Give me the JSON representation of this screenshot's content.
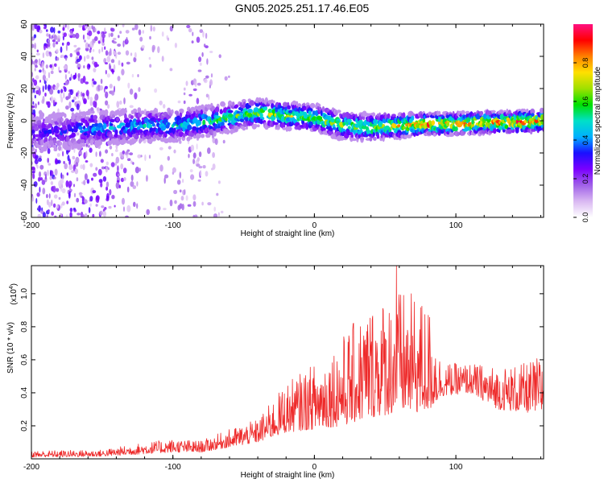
{
  "title": "GN05.2025.251.17.46.E05",
  "chart_data": [
    {
      "type": "heatmap",
      "name": "spectrogram",
      "xlabel": "Height of straight line (km)",
      "ylabel": "Frequency (Hz)",
      "xlim": [
        -200,
        162
      ],
      "ylim": [
        -60,
        60
      ],
      "xticks": [
        "-200",
        "-100",
        "0",
        "100"
      ],
      "yticks": [
        "-60",
        "-40",
        "-20",
        "0",
        "20",
        "40",
        "60"
      ],
      "colorbar": {
        "label": "Normalized spectral amplitude",
        "range": [
          0.0,
          1.0
        ],
        "ticks": [
          "0.0",
          "0.2",
          "0.4",
          "0.6",
          "0.8"
        ],
        "stops": [
          "#ffffff",
          "#d9b8f2",
          "#a060e8",
          "#7a00ff",
          "#1a10ff",
          "#00b0ff",
          "#00e0c8",
          "#00e000",
          "#a0e000",
          "#ffe000",
          "#ff8000",
          "#ff0000",
          "#ff1080"
        ]
      },
      "ridge_profile": [
        {
          "x": -200,
          "f": -8,
          "amp": 0.3,
          "noise": 0.85
        },
        {
          "x": -180,
          "f": -7,
          "amp": 0.35,
          "noise": 0.8
        },
        {
          "x": -160,
          "f": -5,
          "amp": 0.42,
          "noise": 0.7
        },
        {
          "x": -140,
          "f": -4,
          "amp": 0.48,
          "noise": 0.55
        },
        {
          "x": -120,
          "f": -3,
          "amp": 0.5,
          "noise": 0.15
        },
        {
          "x": -100,
          "f": -3,
          "amp": 0.52,
          "noise": 0.15
        },
        {
          "x": -80,
          "f": -1,
          "amp": 0.55,
          "noise": 0.35
        },
        {
          "x": -60,
          "f": 2,
          "amp": 0.62,
          "noise": 0.02
        },
        {
          "x": -40,
          "f": 5,
          "amp": 0.68,
          "noise": 0.0
        },
        {
          "x": -20,
          "f": 3,
          "amp": 0.72,
          "noise": 0.0
        },
        {
          "x": 0,
          "f": 2,
          "amp": 0.7,
          "noise": 0.0
        },
        {
          "x": 20,
          "f": -3,
          "amp": 0.68,
          "noise": 0.0
        },
        {
          "x": 40,
          "f": -4,
          "amp": 0.72,
          "noise": 0.0
        },
        {
          "x": 60,
          "f": -3,
          "amp": 0.78,
          "noise": 0.0
        },
        {
          "x": 80,
          "f": -2,
          "amp": 0.92,
          "noise": 0.0
        },
        {
          "x": 100,
          "f": -2,
          "amp": 0.88,
          "noise": 0.0
        },
        {
          "x": 120,
          "f": -1,
          "amp": 0.9,
          "noise": 0.0
        },
        {
          "x": 140,
          "f": -1,
          "amp": 0.92,
          "noise": 0.0
        },
        {
          "x": 162,
          "f": 0,
          "amp": 0.9,
          "noise": 0.0
        }
      ]
    },
    {
      "type": "line",
      "name": "snr",
      "xlabel": "Height of straight line (km)",
      "ylabel": "SNR (10 * v/v)",
      "scale_label": "(x10",
      "scale_exp": "4",
      "scale_close": ")",
      "xlim": [
        -200,
        162
      ],
      "ylim": [
        0,
        1.17
      ],
      "xticks": [
        "-200",
        "-100",
        "0",
        "100"
      ],
      "yticks": [
        "0.2",
        "0.4",
        "0.6",
        "0.8",
        "1.0"
      ],
      "color": "#ee2a2a",
      "envelope": [
        {
          "x": -200,
          "base": 0.01,
          "spread": 0.04
        },
        {
          "x": -150,
          "base": 0.015,
          "spread": 0.04
        },
        {
          "x": -120,
          "base": 0.03,
          "spread": 0.07
        },
        {
          "x": -100,
          "base": 0.04,
          "spread": 0.08
        },
        {
          "x": -80,
          "base": 0.04,
          "spread": 0.07
        },
        {
          "x": -60,
          "base": 0.07,
          "spread": 0.11
        },
        {
          "x": -40,
          "base": 0.1,
          "spread": 0.14
        },
        {
          "x": -20,
          "base": 0.16,
          "spread": 0.3
        },
        {
          "x": 0,
          "base": 0.18,
          "spread": 0.4
        },
        {
          "x": 20,
          "base": 0.2,
          "spread": 0.55
        },
        {
          "x": 40,
          "base": 0.25,
          "spread": 0.7
        },
        {
          "x": 60,
          "base": 0.28,
          "spread": 0.75
        },
        {
          "x": 80,
          "base": 0.28,
          "spread": 0.68
        },
        {
          "x": 90,
          "base": 0.38,
          "spread": 0.2
        },
        {
          "x": 110,
          "base": 0.4,
          "spread": 0.18
        },
        {
          "x": 130,
          "base": 0.3,
          "spread": 0.26
        },
        {
          "x": 150,
          "base": 0.28,
          "spread": 0.3
        },
        {
          "x": 162,
          "base": 0.28,
          "spread": 0.36
        }
      ],
      "peak": {
        "x": 58,
        "y": 1.17
      }
    }
  ]
}
